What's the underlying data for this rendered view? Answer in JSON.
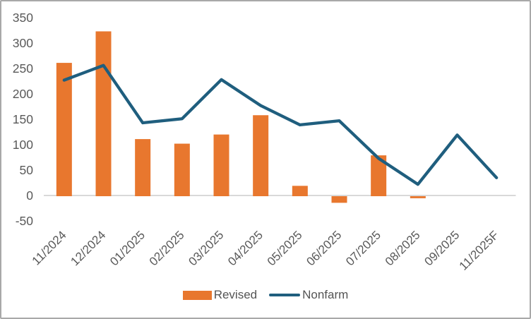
{
  "window": {
    "background": "#ffffff",
    "frame_border_color": "#a9a9a9"
  },
  "chart_data": {
    "type": "bar",
    "combo": "bar+line",
    "title": "",
    "xlabel": "",
    "ylabel": "",
    "categories": [
      "11/2024",
      "12/2024",
      "01/2025",
      "02/2025",
      "03/2025",
      "04/2025",
      "05/2025",
      "06/2025",
      "07/2025",
      "08/2025",
      "09/2025",
      "11/2025F"
    ],
    "series": [
      {
        "name": "Revised",
        "type": "bar",
        "color": "#e8772e",
        "values": [
          261,
          323,
          111,
          102,
          120,
          158,
          19,
          -13,
          79,
          -4,
          null,
          null
        ]
      },
      {
        "name": "Nonfarm",
        "type": "line",
        "color": "#1f5e7e",
        "values": [
          227,
          256,
          143,
          151,
          228,
          177,
          139,
          147,
          73,
          22,
          119,
          35
        ]
      }
    ],
    "ylim": [
      -50,
      350
    ],
    "yticks": [
      350,
      300,
      250,
      200,
      150,
      100,
      50,
      0,
      -50
    ],
    "grid": false,
    "legend_position": "bottom-center",
    "tick_label_color": "#595959",
    "axis_line_color": "#d9d9d9",
    "x_tick_rotation_deg": -45
  },
  "legend": {
    "revised": "Revised",
    "nonfarm": "Nonfarm"
  }
}
